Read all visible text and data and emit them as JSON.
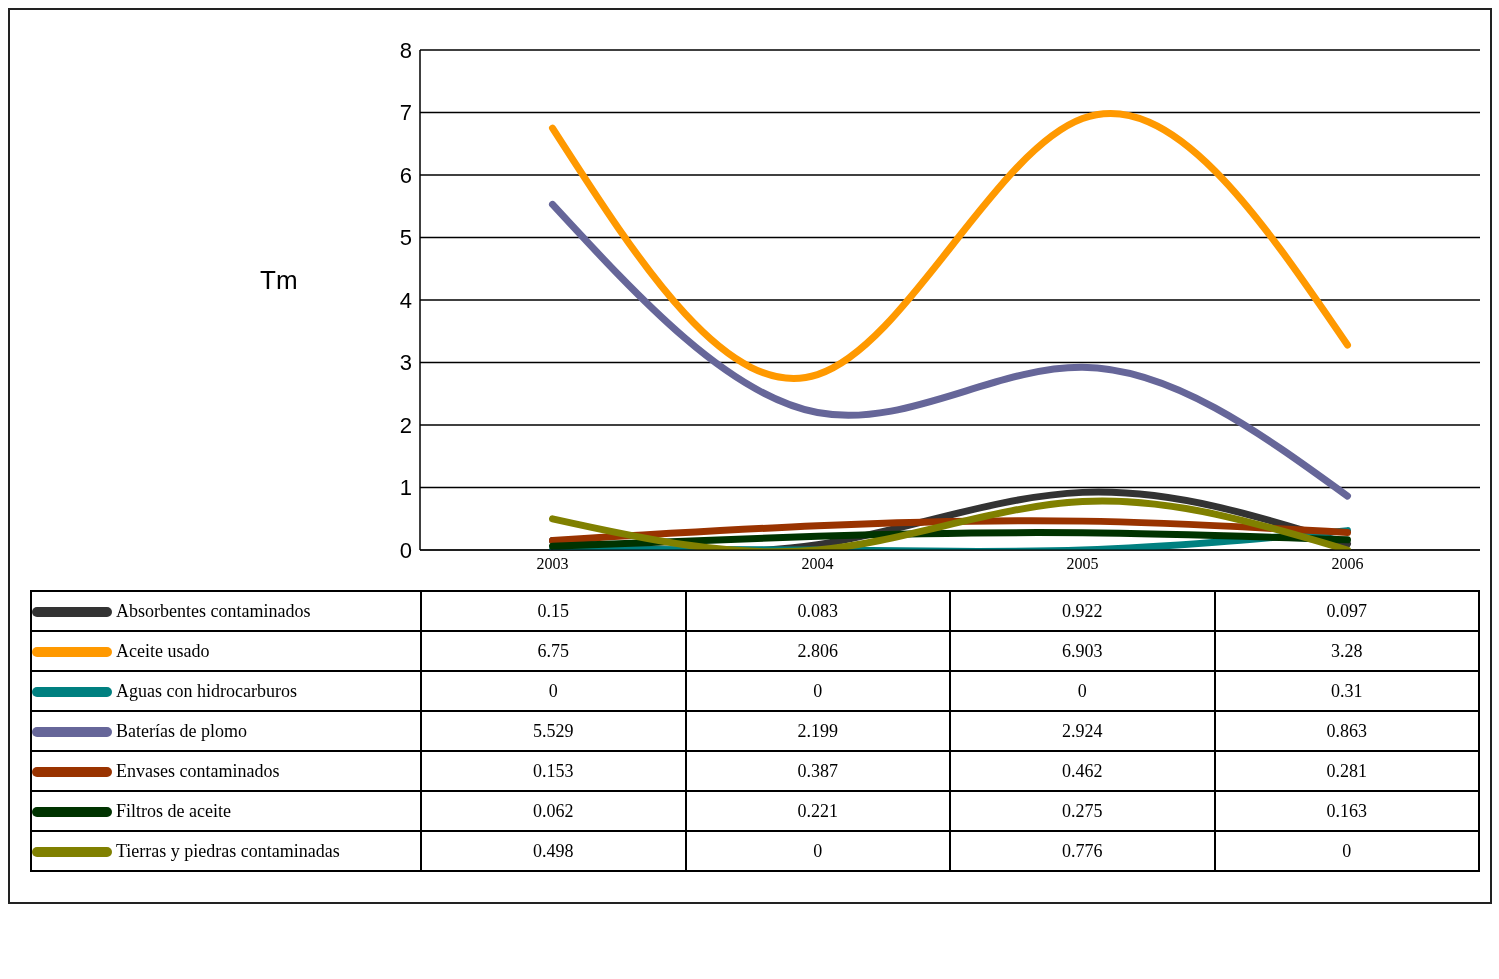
{
  "chart_data": {
    "type": "line",
    "ylabel": "Tm",
    "categories": [
      "2003",
      "2004",
      "2005",
      "2006"
    ],
    "ylim": [
      0,
      8
    ],
    "yticks": [
      0,
      1,
      2,
      3,
      4,
      5,
      6,
      7,
      8
    ],
    "grid": "y",
    "legend": "bottom",
    "data_labels": true,
    "marker": "none",
    "line_style": "solid",
    "series": [
      {
        "name": "Absorbentes contaminados",
        "color": "#333333",
        "values": [
          0.15,
          0.083,
          0.922,
          0.097
        ]
      },
      {
        "name": "Aceite usado",
        "color": "#ff9900",
        "values": [
          6.75,
          2.806,
          6.903,
          3.28
        ]
      },
      {
        "name": "Aguas con hidrocarburos",
        "color": "#008080",
        "values": [
          0,
          0,
          0,
          0.31
        ]
      },
      {
        "name": "Baterías de plomo",
        "color": "#666699",
        "values": [
          5.529,
          2.199,
          2.924,
          0.863
        ]
      },
      {
        "name": "Envases contaminados",
        "color": "#993300",
        "values": [
          0.153,
          0.387,
          0.462,
          0.281
        ]
      },
      {
        "name": "Filtros de aceite",
        "color": "#003300",
        "values": [
          0.062,
          0.221,
          0.275,
          0.163
        ]
      },
      {
        "name": "Tierras y piedras contaminadas",
        "color": "#808000",
        "values": [
          0.498,
          0,
          0.776,
          0
        ]
      }
    ]
  }
}
